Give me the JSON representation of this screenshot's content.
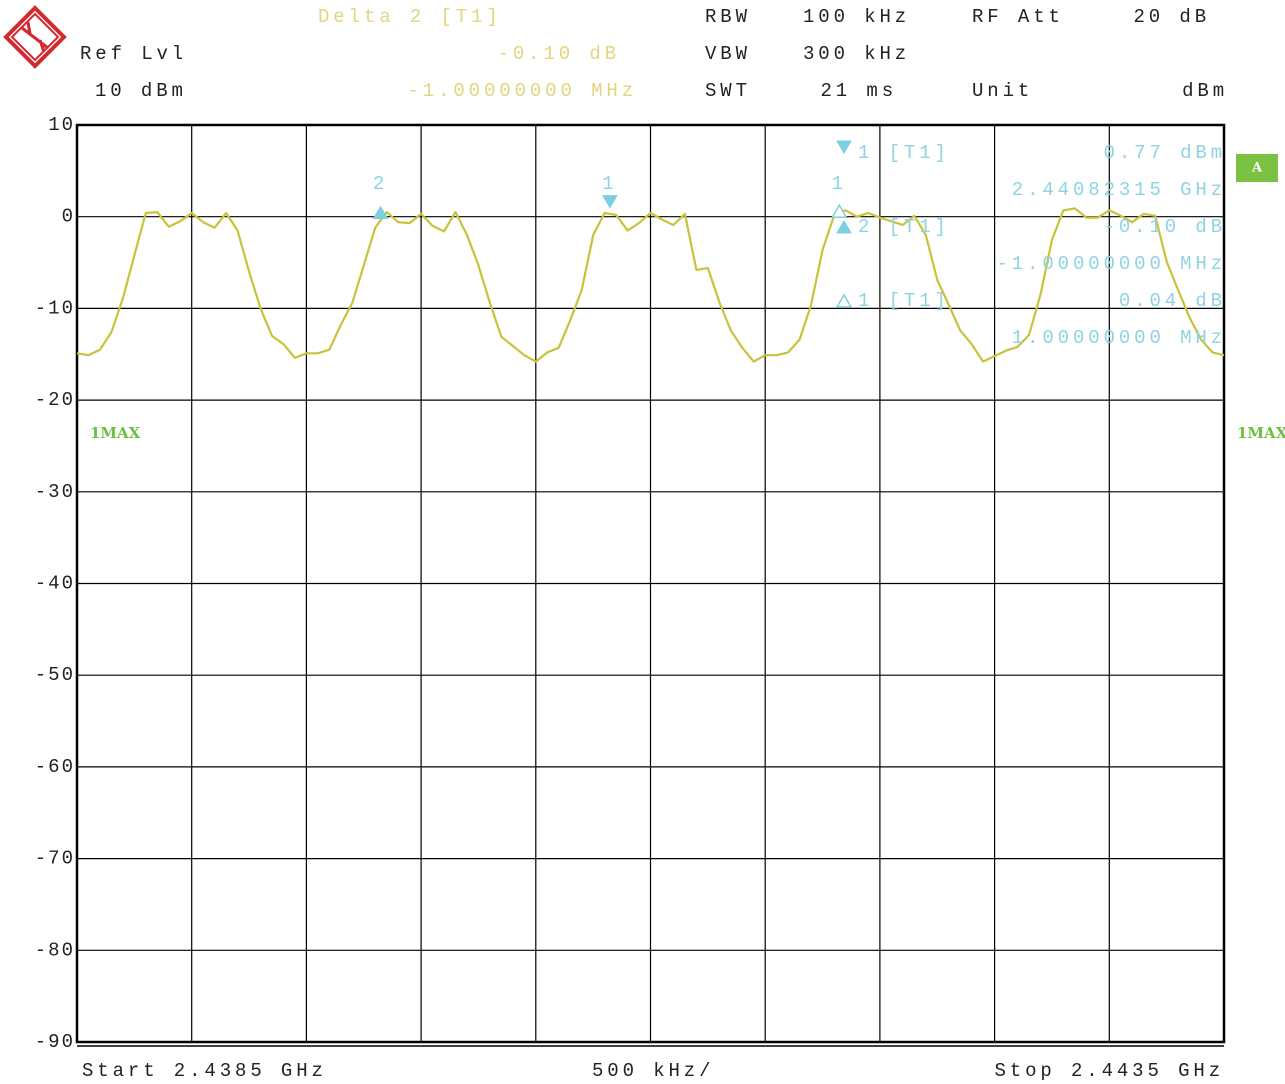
{
  "chart_data": {
    "type": "line",
    "header": [
      {
        "label": "RBW",
        "value": "100 kHz"
      },
      {
        "label": "VBW",
        "value": "300 kHz"
      },
      {
        "label": "SWT",
        "value": "21 ms"
      },
      {
        "label": "RF Att",
        "value": "20 dB"
      },
      {
        "label": "Unit",
        "value": "dBm"
      }
    ],
    "ref_level": {
      "label": "Ref Lvl",
      "value": "10 dBm"
    },
    "active_marker": {
      "name": "Delta 2 [T1]",
      "level": "-0.10 dB",
      "offset": "-1.00000000 MHz"
    },
    "marker_info": [
      {
        "symbol": "filled-down",
        "name": "1 [T1]",
        "level": "0.77 dBm",
        "position": "2.44082315 GHz"
      },
      {
        "symbol": "filled-up",
        "name": "2 [T1]",
        "level": "-0.10 dB",
        "position": "-1.00000000 MHz"
      },
      {
        "symbol": "outline-up",
        "name": "1 [T1]",
        "level": "0.04 dB",
        "position": "1.00000000 MHz"
      }
    ],
    "start_label": "Start 2.4385 GHz",
    "span_label": "500 kHz/",
    "stop_label": "Stop 2.4435 GHz",
    "screen_label": "A",
    "xlim": [
      2.4385,
      2.4435
    ],
    "xticks": [
      2.4385,
      2.439,
      2.4395,
      2.44,
      2.4405,
      2.441,
      2.4415,
      2.442,
      2.4425,
      2.443,
      2.4435
    ],
    "ylim": [
      -90,
      10
    ],
    "yticks": [
      10,
      0,
      -10,
      -20,
      -30,
      -40,
      -50,
      -60,
      -70,
      -80,
      -90
    ],
    "grid": true,
    "x": [
      2.4385,
      2.43855,
      2.4386,
      2.43865,
      2.4387,
      2.43875,
      2.4388,
      2.43885,
      2.4389,
      2.43895,
      2.439,
      2.43905,
      2.4391,
      2.43915,
      2.4392,
      2.43925,
      2.4393,
      2.43935,
      2.4394,
      2.43945,
      2.4395,
      2.43955,
      2.4396,
      2.43965,
      2.4397,
      2.43975,
      2.4398,
      2.43985,
      2.4399,
      2.43995,
      2.44,
      2.44005,
      2.4401,
      2.44015,
      2.4402,
      2.44025,
      2.4403,
      2.44035,
      2.4404,
      2.44045,
      2.4405,
      2.44055,
      2.4406,
      2.44065,
      2.4407,
      2.44075,
      2.4408,
      2.44085,
      2.4409,
      2.44095,
      2.441,
      2.44105,
      2.4411,
      2.44115,
      2.4412,
      2.44125,
      2.4413,
      2.44135,
      2.4414,
      2.44145,
      2.4415,
      2.44155,
      2.4416,
      2.44165,
      2.4417,
      2.44175,
      2.4418,
      2.44185,
      2.4419,
      2.44195,
      2.442,
      2.44205,
      2.4421,
      2.44215,
      2.4422,
      2.44225,
      2.4423,
      2.44235,
      2.4424,
      2.44245,
      2.4425,
      2.44255,
      2.4426,
      2.44265,
      2.4427,
      2.44275,
      2.4428,
      2.44285,
      2.4429,
      2.44295,
      2.443,
      2.44305,
      2.4431,
      2.44315,
      2.4432,
      2.44325,
      2.4433,
      2.44335,
      2.4434,
      2.44345,
      2.4435
    ],
    "series": [
      {
        "name": "1MAX",
        "color": "#c9c23a",
        "values": [
          -14.9,
          -15.1,
          -14.5,
          -12.6,
          -8.9,
          -4.2,
          0.4,
          0.5,
          -1.1,
          -0.5,
          0.4,
          -0.6,
          -1.2,
          0.4,
          -1.5,
          -6.0,
          -10.0,
          -13.0,
          -13.9,
          -15.4,
          -14.9,
          -14.9,
          -14.5,
          -11.8,
          -9.4,
          -5.3,
          -1.2,
          0.5,
          -0.6,
          -0.7,
          0.3,
          -1.0,
          -1.6,
          0.5,
          -2.0,
          -5.3,
          -9.4,
          -13.1,
          -14.1,
          -15.1,
          -15.8,
          -14.8,
          -14.3,
          -11.3,
          -8.0,
          -2.0,
          0.4,
          0.2,
          -1.5,
          -0.7,
          0.4,
          -0.3,
          -0.9,
          0.3,
          -5.8,
          -5.6,
          -9.3,
          -12.4,
          -14.3,
          -15.8,
          -15.1,
          -15.1,
          -14.8,
          -13.4,
          -9.6,
          -3.6,
          0.1,
          0.7,
          0.0,
          0.4,
          -0.1,
          -0.5,
          -0.9,
          0.1,
          -2.0,
          -6.9,
          -9.6,
          -12.4,
          -13.9,
          -15.8,
          -15.2,
          -14.6,
          -14.2,
          -12.9,
          -8.5,
          -2.5,
          0.7,
          0.9,
          -0.1,
          -0.1,
          0.7,
          0.1,
          -0.6,
          0.3,
          0.1,
          -4.9,
          -8.0,
          -11.0,
          -13.4,
          -14.8,
          -15.1
        ]
      }
    ],
    "markers": [
      {
        "label": "2",
        "symbol": "filled-up",
        "x": 2.43982315,
        "y": 0.67
      },
      {
        "label": "1",
        "symbol": "filled-down",
        "x": 2.44082315,
        "y": 0.77
      },
      {
        "label": "1",
        "symbol": "outline-up",
        "x": 2.44182315,
        "y": 0.81
      }
    ]
  }
}
